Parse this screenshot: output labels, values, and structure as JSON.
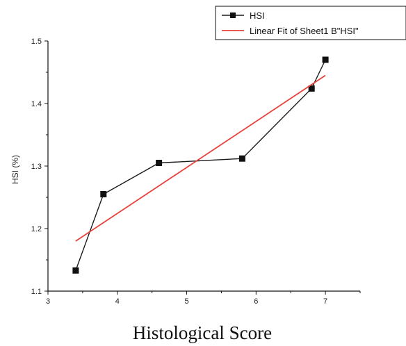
{
  "chart_data": {
    "type": "line",
    "title": "",
    "xlabel": "Histological Score",
    "ylabel": "HSI (%)",
    "xlim": [
      3,
      7.5
    ],
    "ylim": [
      1.1,
      1.5
    ],
    "x_ticks": [
      "3",
      "4",
      "5",
      "6",
      "7"
    ],
    "y_ticks": [
      "1.1",
      "1.2",
      "1.3",
      "1.4",
      "1.5"
    ],
    "legend_position": "top-right",
    "grid": false,
    "series": [
      {
        "name": "HSI",
        "kind": "line+markers",
        "color": "#1a1a1a",
        "x": [
          3.4,
          3.8,
          4.6,
          5.8,
          6.8,
          7.0
        ],
        "y": [
          1.133,
          1.255,
          1.305,
          1.312,
          1.424,
          1.47
        ]
      },
      {
        "name": "Linear Fit of Sheet1 B\"HSI\"",
        "kind": "line",
        "color": "#e8403a",
        "x": [
          3.4,
          7.0
        ],
        "y": [
          1.18,
          1.445
        ]
      }
    ]
  }
}
